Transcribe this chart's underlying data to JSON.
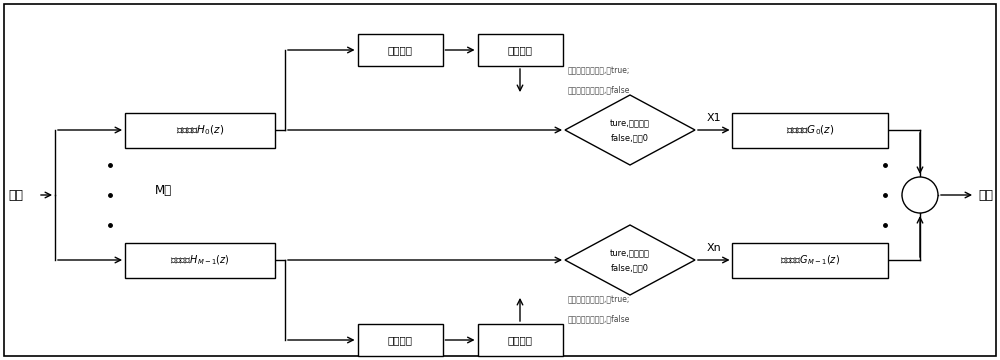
{
  "bg_color": "#ffffff",
  "fig_width": 10.0,
  "fig_height": 3.6,
  "dpi": 100,
  "input_label": "输入",
  "output_label": "输出",
  "m_label": "M个",
  "top_filter_label": "数字滤波$H_0(z)$",
  "bot_filter_label": "数字滤波$H_{M-1}(z)$",
  "top_recon_label": "重构滤波$G_0(z)$",
  "bot_recon_label": "重构滤波$G_{M-1}(z)$",
  "power_detect_label": "功率检测",
  "decision_unit_label": "判决单元",
  "top_diamond_line1": "ture,直接输出",
  "top_diamond_line2": "false,输入0",
  "bot_diamond_line1": "ture,直接输出",
  "bot_diamond_line2": "false,输入0",
  "top_annot_line1": "大于噪声开启门限,为true;",
  "top_annot_line2": "小于噪声关闭门限,为false",
  "bot_annot_line1": "大于噪声开启门限,为true;",
  "bot_annot_line2": "小于噪声关闭门限,为false",
  "x1_label": "X1",
  "xn_label": "Xn"
}
